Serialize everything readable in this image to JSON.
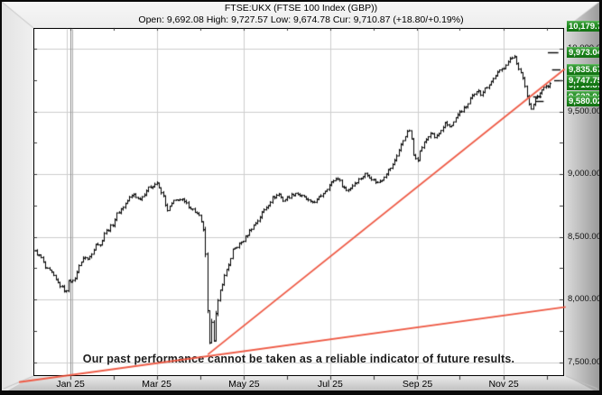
{
  "window": {
    "title": "FTSE:UKX (FTSE 100 Index (GBP))",
    "subtitle": "Open: 9,692.08 High: 9,727.57 Low: 9,674.78 Cur: 9,710.87 (+18.80/+0.19%)"
  },
  "disclaimer": "Our past performance cannot be taken as a reliable indicator of future results.",
  "colors": {
    "bar": "#000000",
    "trend_line": "#ee5a45",
    "grid": "#cdcdcd",
    "label_green_top": "#43a143",
    "label_green_bottom": "#137013",
    "axis_text": "#111111"
  },
  "chart_data": {
    "type": "ohlc-bar",
    "symbol": "FTSE:UKX",
    "name": "FTSE 100 Index (GBP)",
    "quote": {
      "open": 9692.08,
      "high": 9727.57,
      "low": 9674.78,
      "cur": 9710.87,
      "change": "+18.80/+0.19%"
    },
    "y_axis": {
      "labels": [
        {
          "text": "10,000.00",
          "price": 10000
        },
        {
          "text": "9,500.00",
          "price": 9500
        },
        {
          "text": "9,000.00",
          "price": 9000
        },
        {
          "text": "8,500.00",
          "price": 8500
        },
        {
          "text": "8,000.00",
          "price": 8000
        },
        {
          "text": "7,500.00",
          "price": 7500
        }
      ],
      "gridline_prices": [
        10000,
        9500,
        9000,
        8500,
        8000,
        7500
      ],
      "minor_tick_step": 250,
      "range_shown": [
        7400,
        10170
      ]
    },
    "x_axis": {
      "labels": [
        {
          "text": "Jan 25",
          "day": 17
        },
        {
          "text": "Mar 25",
          "day": 58
        },
        {
          "text": "May 25",
          "day": 99.5
        },
        {
          "text": "Jul 25",
          "day": 140.5
        },
        {
          "text": "Sep 25",
          "day": 182
        },
        {
          "text": "Nov 25",
          "day": 223
        }
      ],
      "tick_days": [
        17,
        37.6,
        58,
        78.6,
        99.4,
        120,
        140.6,
        161,
        181.8,
        202,
        223,
        243.6
      ],
      "year_marker_day": 17
    },
    "price_level_labels": [
      {
        "text": "10,179.7",
        "price": 10179.7,
        "z": 5
      },
      {
        "text": "9,973.04",
        "price": 9973.04,
        "z": 5
      },
      {
        "text": "9,835.67",
        "price": 9835.67,
        "z": 5
      },
      {
        "text": "9,747.75",
        "price": 9747.75,
        "z": 5
      },
      {
        "text": "9,710.87",
        "price": 9710.87,
        "z": 4
      },
      {
        "text": "9,622.04",
        "price": 9622.04,
        "z": 4
      },
      {
        "text": "9,580.02",
        "price": 9580.02,
        "z": 5
      }
    ],
    "level_dashes": [
      {
        "price": 9973.04,
        "day1": 244,
        "day2": 249
      },
      {
        "price": 9835.67,
        "day1": 246,
        "day2": 250
      },
      {
        "price": 9747.75,
        "day1": 247,
        "day2": 251
      },
      {
        "price": 9622.04,
        "day1": 237,
        "day2": 241
      },
      {
        "price": 9580.02,
        "day1": 238,
        "day2": 242
      }
    ],
    "trend_lines": [
      {
        "from_day": 82.3,
        "from_price": 7560,
        "to_day": 252,
        "to_price": 9838
      },
      {
        "from_day": -7.5,
        "from_price": 7340,
        "to_day": 252.5,
        "to_price": 7940
      }
    ],
    "series": {
      "bars": 246,
      "keypoints": [
        [
          0,
          8380
        ],
        [
          3,
          8330
        ],
        [
          5,
          8250
        ],
        [
          8,
          8210
        ],
        [
          10,
          8150
        ],
        [
          13,
          8090
        ],
        [
          15,
          8060
        ],
        [
          16,
          8160
        ],
        [
          18,
          8140
        ],
        [
          20,
          8210
        ],
        [
          21,
          8280
        ],
        [
          24,
          8340
        ],
        [
          25,
          8320
        ],
        [
          27,
          8360
        ],
        [
          29,
          8450
        ],
        [
          31,
          8430
        ],
        [
          33,
          8530
        ],
        [
          35,
          8560
        ],
        [
          37,
          8600
        ],
        [
          39,
          8680
        ],
        [
          42,
          8740
        ],
        [
          45,
          8810
        ],
        [
          47,
          8840
        ],
        [
          49,
          8800
        ],
        [
          51,
          8820
        ],
        [
          53,
          8870
        ],
        [
          55,
          8900
        ],
        [
          58,
          8930
        ],
        [
          59,
          8880
        ],
        [
          61,
          8820
        ],
        [
          63,
          8700
        ],
        [
          64,
          8740
        ],
        [
          66,
          8780
        ],
        [
          68,
          8800
        ],
        [
          70,
          8790
        ],
        [
          72,
          8760
        ],
        [
          74,
          8730
        ],
        [
          76,
          8700
        ],
        [
          78,
          8660
        ],
        [
          80,
          8560
        ],
        [
          81,
          8350
        ],
        [
          82,
          7900
        ],
        [
          83,
          7640
        ],
        [
          84,
          7830
        ],
        [
          85,
          7680
        ],
        [
          86,
          7880
        ],
        [
          87,
          7980
        ],
        [
          88,
          8070
        ],
        [
          89,
          8130
        ],
        [
          91,
          8240
        ],
        [
          93,
          8320
        ],
        [
          94,
          8390
        ],
        [
          97,
          8440
        ],
        [
          99,
          8470
        ],
        [
          101,
          8520
        ],
        [
          103,
          8570
        ],
        [
          106,
          8630
        ],
        [
          108,
          8690
        ],
        [
          111,
          8760
        ],
        [
          113,
          8810
        ],
        [
          116,
          8840
        ],
        [
          118,
          8790
        ],
        [
          121,
          8820
        ],
        [
          124,
          8850
        ],
        [
          126,
          8830
        ],
        [
          129,
          8800
        ],
        [
          131,
          8770
        ],
        [
          134,
          8790
        ],
        [
          136,
          8830
        ],
        [
          139,
          8890
        ],
        [
          142,
          8950
        ],
        [
          144,
          8970
        ],
        [
          146,
          8910
        ],
        [
          148,
          8870
        ],
        [
          150,
          8890
        ],
        [
          152,
          8930
        ],
        [
          155,
          8970
        ],
        [
          157,
          9000
        ],
        [
          159,
          8980
        ],
        [
          161,
          8950
        ],
        [
          163,
          8930
        ],
        [
          165,
          8960
        ],
        [
          167,
          9010
        ],
        [
          170,
          9070
        ],
        [
          172,
          9150
        ],
        [
          174,
          9230
        ],
        [
          176,
          9310
        ],
        [
          178,
          9350
        ],
        [
          179,
          9270
        ],
        [
          180,
          9150
        ],
        [
          182,
          9120
        ],
        [
          183,
          9180
        ],
        [
          185,
          9250
        ],
        [
          187,
          9300
        ],
        [
          188,
          9330
        ],
        [
          190,
          9290
        ],
        [
          192,
          9320
        ],
        [
          194,
          9360
        ],
        [
          195,
          9400
        ],
        [
          197,
          9380
        ],
        [
          199,
          9410
        ],
        [
          200,
          9450
        ],
        [
          202,
          9490
        ],
        [
          204,
          9520
        ],
        [
          206,
          9560
        ],
        [
          207,
          9600
        ],
        [
          209,
          9630
        ],
        [
          211,
          9670
        ],
        [
          212,
          9640
        ],
        [
          214,
          9680
        ],
        [
          216,
          9720
        ],
        [
          218,
          9760
        ],
        [
          219,
          9790
        ],
        [
          221,
          9820
        ],
        [
          223,
          9850
        ],
        [
          224,
          9880
        ],
        [
          226,
          9910
        ],
        [
          228,
          9945
        ],
        [
          229,
          9890
        ],
        [
          230,
          9830
        ],
        [
          232,
          9770
        ],
        [
          233,
          9700
        ],
        [
          234,
          9620
        ],
        [
          236,
          9520
        ],
        [
          237,
          9560
        ],
        [
          238,
          9600
        ],
        [
          240,
          9640
        ],
        [
          241,
          9670
        ],
        [
          242,
          9690
        ],
        [
          243,
          9700
        ],
        [
          245,
          9711
        ]
      ],
      "crash_days": [
        81,
        87
      ]
    }
  }
}
